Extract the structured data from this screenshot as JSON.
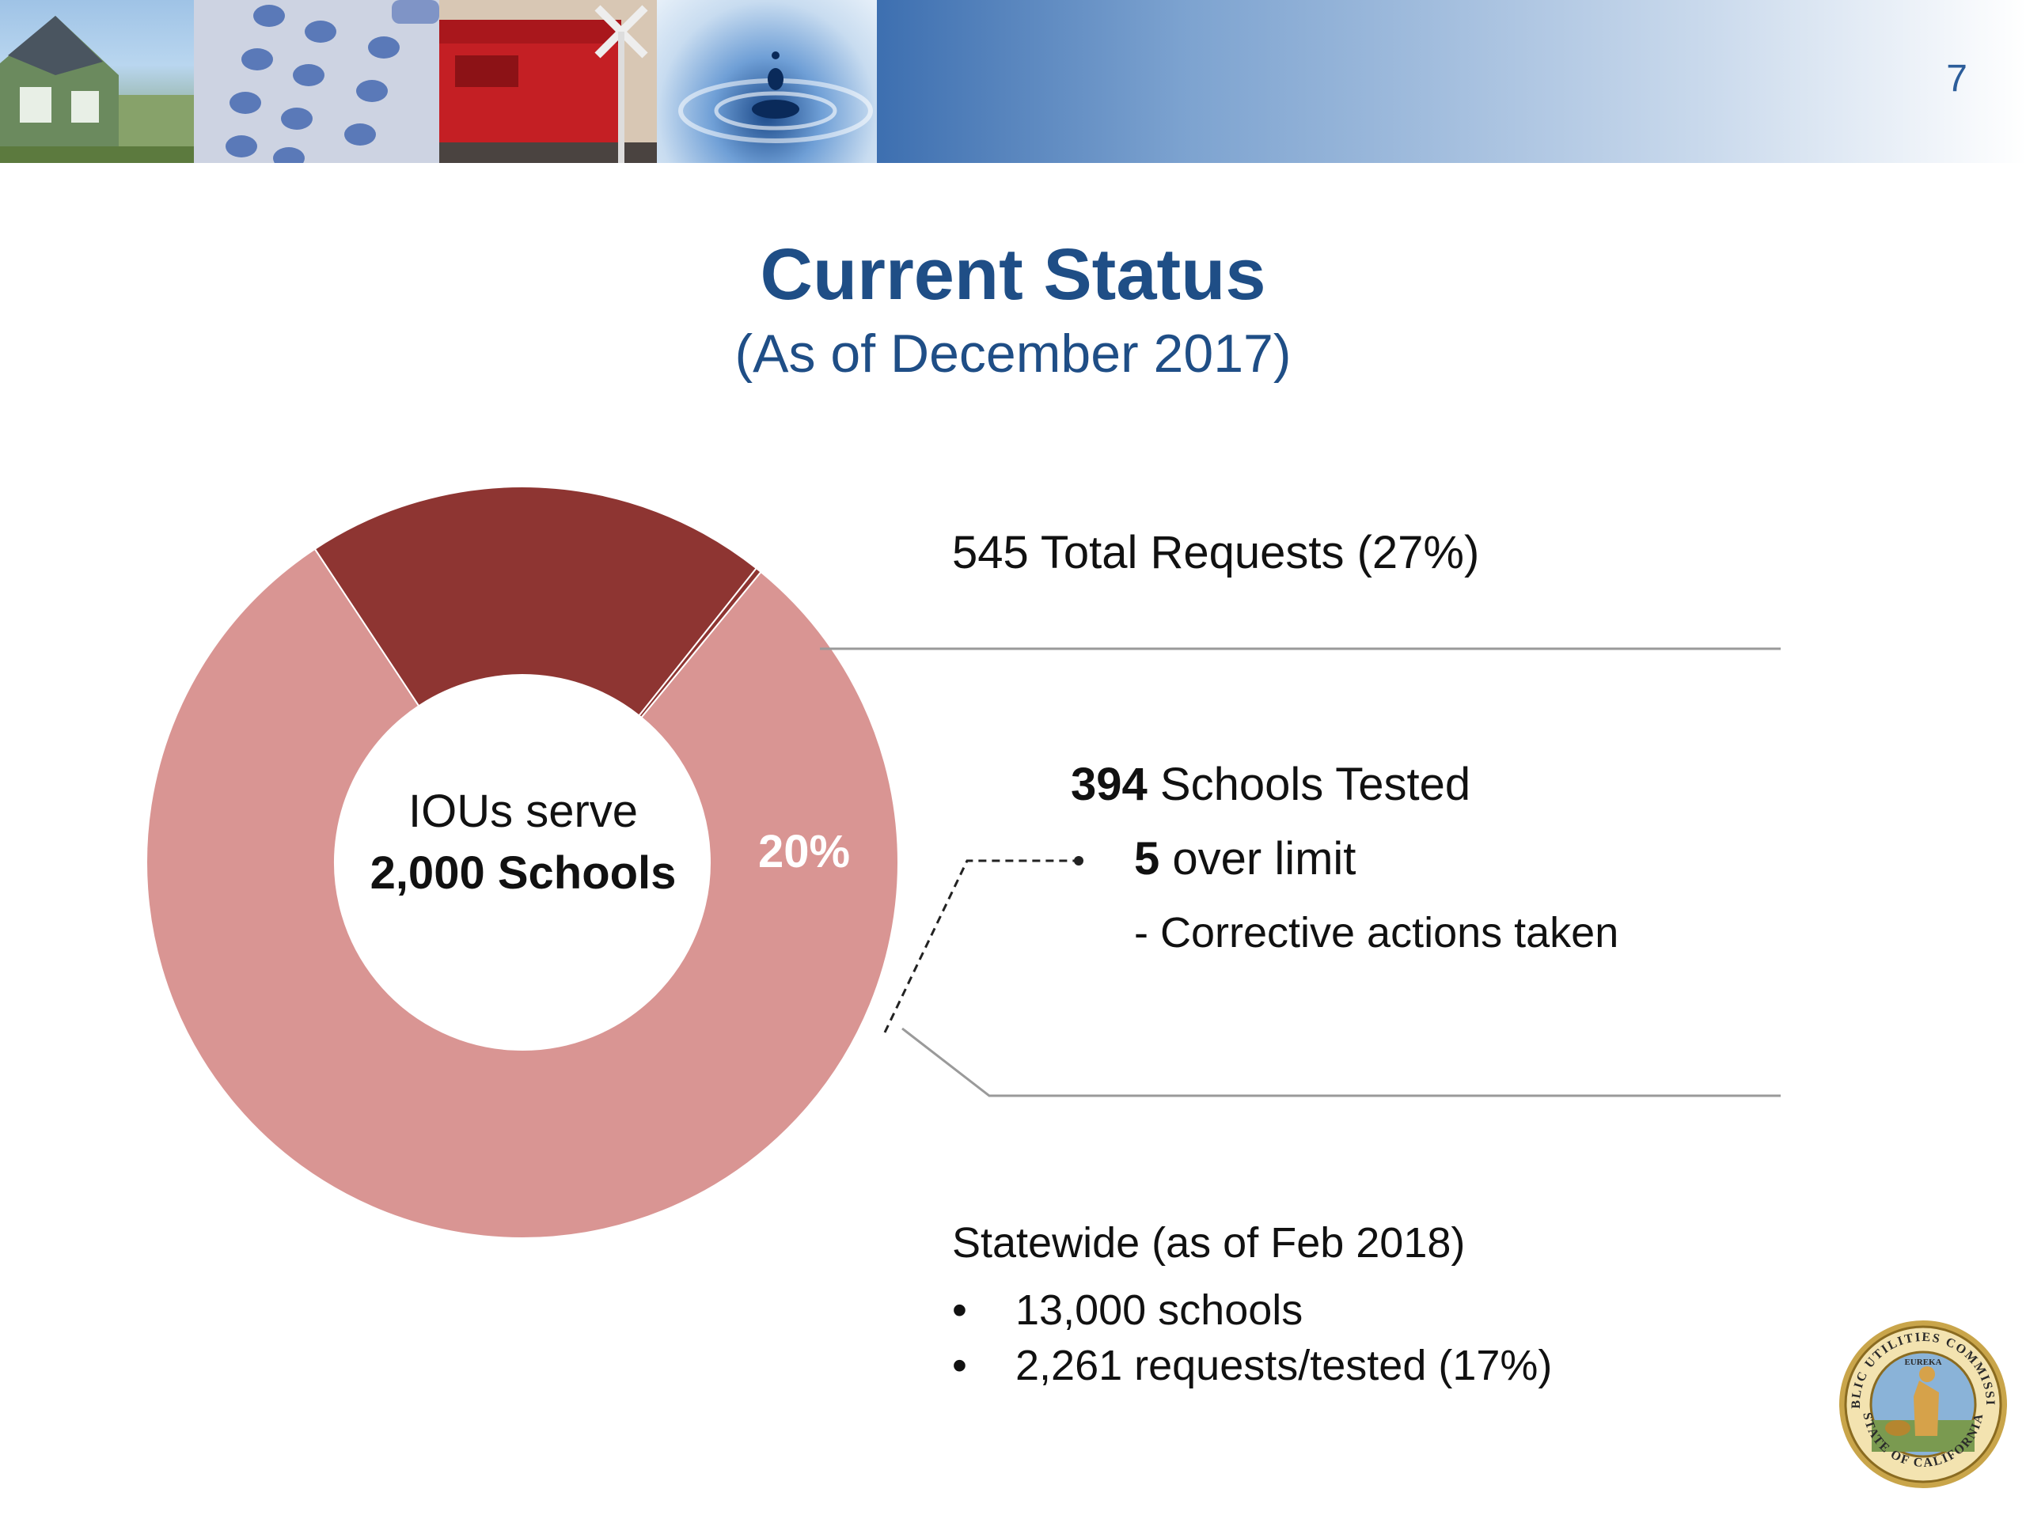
{
  "slide": {
    "number": "7",
    "title": "Current Status",
    "subtitle": "(As of December 2017)"
  },
  "header_images": [
    "house-with-solar-panels",
    "phone-keypad",
    "red-train-at-crossing",
    "water-droplet"
  ],
  "colors": {
    "title": "#1f4e86",
    "donut_light": "#d99593",
    "donut_dark": "#8e3532",
    "connector_line": "#9a9a9a"
  },
  "chart_data": {
    "type": "pie",
    "style": "donut",
    "center_label": {
      "line1": "IOUs serve",
      "line2": "2,000 Schools"
    },
    "slices": [
      {
        "label": "20%",
        "value": 20,
        "color": "#8e3532"
      },
      {
        "label": "",
        "value": 0.25,
        "color": "#8e3532"
      },
      {
        "label": "",
        "value": 79.75,
        "color": "#d99593"
      }
    ]
  },
  "annotations": {
    "total_requests": "545 Total Requests (27%)",
    "schools_tested_count": "394",
    "schools_tested_label": " Schools Tested",
    "over_limit_count": "5",
    "over_limit_label": " over limit",
    "corrective": "- Corrective actions taken",
    "statewide_heading": "Statewide (as of Feb 2018)",
    "statewide_items": [
      "13,000 schools",
      "2,261 requests/tested (17%)"
    ]
  },
  "logo": {
    "name": "seal-icon",
    "text": [
      "PUBLIC UTILITIES COMMISSION",
      "STATE OF CALIFORNIA",
      "EUREKA"
    ]
  }
}
